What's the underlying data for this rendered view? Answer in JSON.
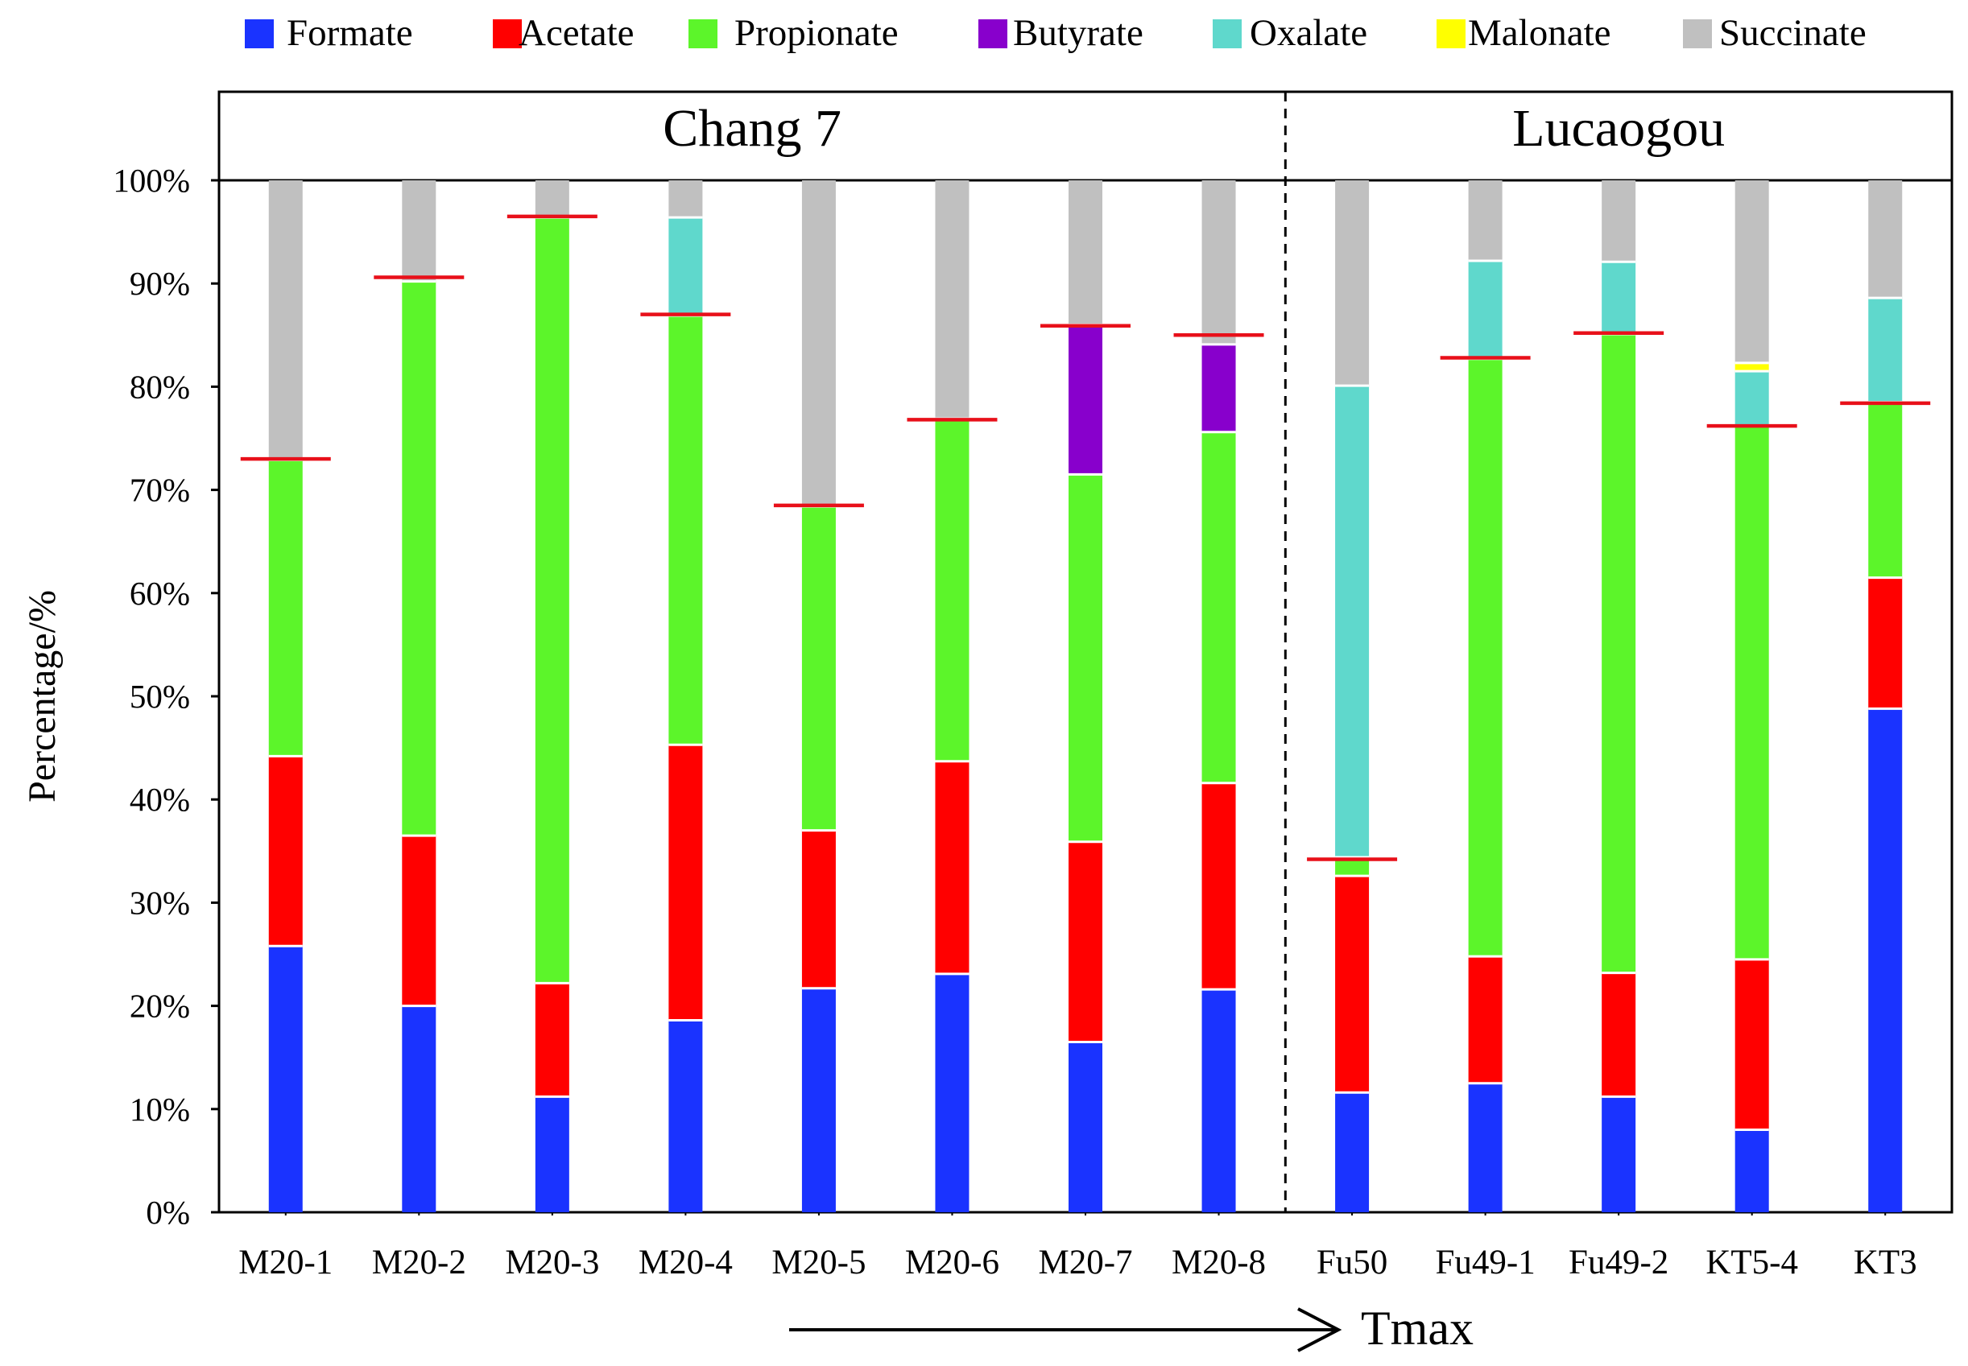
{
  "chart_data": {
    "type": "stacked-bar",
    "ylabel": "Percentage/%",
    "xlabel": "Tmax",
    "ylim": [
      0,
      100
    ],
    "yticks": [
      "0%",
      "10%",
      "20%",
      "30%",
      "40%",
      "50%",
      "60%",
      "70%",
      "80%",
      "90%",
      "100%"
    ],
    "groups": [
      {
        "label": "Chang 7",
        "from": 0,
        "to": 7
      },
      {
        "label": "Lucaogou",
        "from": 8,
        "to": 12
      }
    ],
    "categories": [
      "M20-1",
      "M20-2",
      "M20-3",
      "M20-4",
      "M20-5",
      "M20-6",
      "M20-7",
      "M20-8",
      "Fu50",
      "Fu49-1",
      "Fu49-2",
      "KT5-4",
      "KT3"
    ],
    "series": [
      {
        "name": "Formate",
        "color": "#1a33ff",
        "values": [
          25.8,
          20.0,
          11.2,
          18.6,
          21.7,
          23.1,
          16.5,
          21.6,
          11.6,
          12.5,
          11.2,
          8.0,
          48.8
        ]
      },
      {
        "name": "Acetate",
        "color": "#ff0000",
        "values": [
          18.4,
          16.5,
          11.0,
          26.7,
          15.3,
          20.6,
          19.4,
          20.0,
          21.0,
          12.3,
          12.0,
          16.5,
          12.7
        ]
      },
      {
        "name": "Propionate",
        "color": "#5cf52a",
        "values": [
          28.7,
          53.7,
          74.2,
          41.6,
          31.4,
          33.2,
          35.6,
          34.0,
          1.8,
          57.9,
          61.9,
          51.7,
          17.0
        ]
      },
      {
        "name": "Butyrate",
        "color": "#8800cc",
        "values": [
          0,
          0,
          0,
          0,
          0,
          0,
          14.5,
          8.5,
          0,
          0,
          0,
          0,
          0
        ]
      },
      {
        "name": "Oxalate",
        "color": "#5fd8cc",
        "values": [
          0,
          0,
          0,
          9.5,
          0,
          0,
          0,
          0,
          45.7,
          9.5,
          7.0,
          5.3,
          10.1
        ]
      },
      {
        "name": "Malonate",
        "color": "#ffff00",
        "values": [
          0,
          0,
          0,
          0,
          0,
          0,
          0,
          0,
          0,
          0,
          0,
          0.8,
          0
        ]
      },
      {
        "name": "Succinate",
        "color": "#c0c0c0",
        "values": [
          27.1,
          9.8,
          3.6,
          3.6,
          31.6,
          23.1,
          14.0,
          15.9,
          19.9,
          7.8,
          7.9,
          17.7,
          11.4
        ]
      }
    ],
    "marker_series": {
      "name": "",
      "color": "#e8101a",
      "values": [
        73.0,
        90.6,
        96.5,
        87.0,
        68.5,
        76.8,
        85.9,
        85.0,
        34.2,
        82.8,
        85.2,
        76.2,
        78.4
      ]
    }
  }
}
